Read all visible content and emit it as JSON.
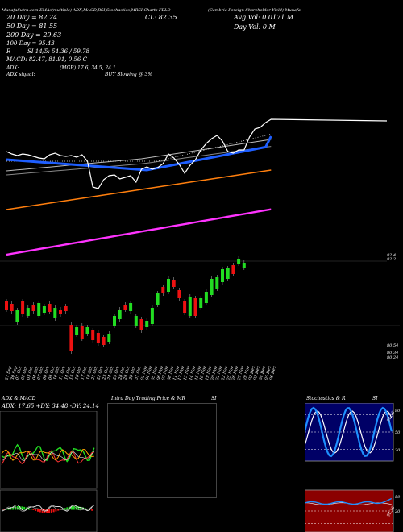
{
  "header": {
    "line1": "MunafaSutra.com EMAs(multiple) ADX,MACD,RSI,Stochastics,MRSI,Charts FELD",
    "company": "(Cambria Foreign Shareholder Yield) Munafa",
    "stats": [
      {
        "label": "20 Day",
        "value": "82.24"
      },
      {
        "label": "50 Day",
        "value": "81.55"
      },
      {
        "label": "100 Day",
        "value": "95.43"
      },
      {
        "label": "200 Day",
        "value": "29.63"
      }
    ],
    "close": "CL: 82.35",
    "avg_vol": "Avg Vol: 0.0171 M",
    "day_vol": "Day Vol: 0   M",
    "rsi": "R",
    "si": "SI 14/5: 54.36  / 59.78",
    "macd": "MACD: 82.47, 81.91, 0.56  C",
    "adx": "ADX:",
    "adx_values": "(MGR) 17.6, 34.5, 24.1",
    "adx_signal_label": "ADX  signal:",
    "signal": "BUY Slowing @ 3%"
  },
  "price_axis": {
    "top_labels": [
      "82.4",
      "82.2"
    ],
    "bottom_labels": [
      "80.54",
      "80.34",
      "80.24"
    ]
  },
  "dates": [
    "27 Sep",
    "30 Sep",
    "01 Oct",
    "02 Oct",
    "03 Oct",
    "04 Oct",
    "07 Oct",
    "08 Oct",
    "09 Oct",
    "10 Oct",
    "11 Oct",
    "14 Oct",
    "15 Oct",
    "16 Oct",
    "17 Oct",
    "18 Oct",
    "21 Oct",
    "22 Oct",
    "23 Oct",
    "24 Oct",
    "25 Oct",
    "28 Oct",
    "29 Oct",
    "30 Oct",
    "31 Oct",
    "01 Nov",
    "04 Nov",
    "05 Nov",
    "06 Nov",
    "07 Nov",
    "08 Nov",
    "11 Nov",
    "12 Nov",
    "13 Nov",
    "14 Nov",
    "15 Nov",
    "18 Nov",
    "19 Nov",
    "20 Nov",
    "21 Nov",
    "22 Nov",
    "25 Nov",
    "26 Nov",
    "27 Nov",
    "29 Nov",
    "02 Dec",
    "03 Dec",
    "04 Dec",
    "05 Dec",
    "06 Dec"
  ],
  "panels": {
    "adx": {
      "title": "ADX  & MACD",
      "values": "ADX: 17.65  +DY: 34.48  -DY: 24.14"
    },
    "intraday": {
      "title": "Intra  Day Trading Price   & MR",
      "si": "SI"
    },
    "stoch": {
      "title": "Stochastics & R",
      "si": "SI",
      "levels": [
        "80",
        "50",
        "20"
      ],
      "level_values": [
        80,
        50,
        20
      ],
      "rsi_levels": [
        "50",
        "20"
      ],
      "rsi_level_values": [
        50,
        20
      ],
      "rsi_side": "54.36",
      "stoch_side": "54.36"
    }
  },
  "colors": {
    "ema_fast": "#ffffff",
    "ema_blue": "#1e5eff",
    "ema_orange": "#ff7f0e",
    "ema_magenta": "#ff33ff",
    "up": "#22dd22",
    "down": "#ee1111",
    "stoch_bg": "#000066",
    "rsi_bg": "#8b0000"
  }
}
